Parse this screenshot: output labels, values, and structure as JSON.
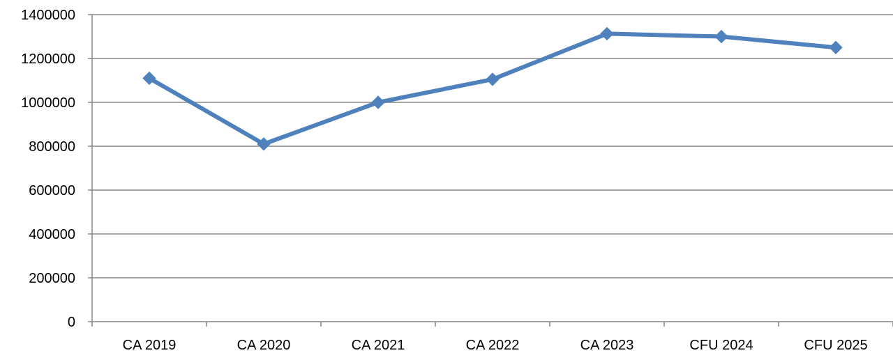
{
  "chart_data": {
    "type": "line",
    "title": "",
    "xlabel": "",
    "ylabel": "",
    "categories": [
      "CA 2019",
      "CA 2020",
      "CA 2021",
      "CA 2022",
      "CA 2023",
      "CFU 2024",
      "CFU 2025"
    ],
    "series": [
      {
        "values": [
          1110000,
          810000,
          1000000,
          1105000,
          1313000,
          1300000,
          1250000
        ],
        "color": "#4F81BD",
        "marker": "diamond"
      }
    ],
    "yticks": [
      0,
      200000,
      400000,
      600000,
      800000,
      1000000,
      1200000,
      1400000
    ],
    "ylim": [
      0,
      1400000
    ],
    "grid": true,
    "legend": "none",
    "colors": {
      "grid": "#868686",
      "axis": "#868686",
      "line": "#4F81BD"
    }
  }
}
